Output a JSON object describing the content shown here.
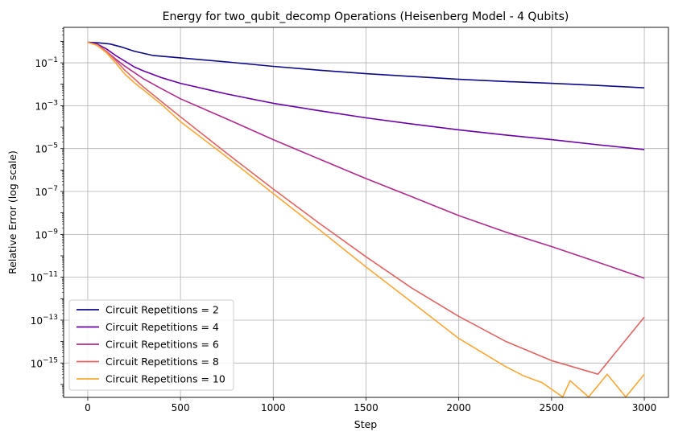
{
  "chart_data": {
    "type": "line",
    "title": "Energy for two_qubit_decomp Operations (Heisenberg Model - 4 Qubits)",
    "xlabel": "Step",
    "ylabel": "Relative Error (log scale)",
    "yscale": "log",
    "xlim": [
      -130,
      3130
    ],
    "ylim": [
      2.5e-17,
      4.5
    ],
    "grid": true,
    "legend_position": "lower-left",
    "xticks": [
      {
        "value": 0,
        "label": "0"
      },
      {
        "value": 500,
        "label": "500"
      },
      {
        "value": 1000,
        "label": "1000"
      },
      {
        "value": 1500,
        "label": "1500"
      },
      {
        "value": 2000,
        "label": "2000"
      },
      {
        "value": 2500,
        "label": "2500"
      },
      {
        "value": 3000,
        "label": "3000"
      }
    ],
    "yticks": [
      {
        "value": 0.1,
        "base": "10",
        "exp": "−1"
      },
      {
        "value": 0.001,
        "base": "10",
        "exp": "−3"
      },
      {
        "value": 1e-05,
        "base": "10",
        "exp": "−5"
      },
      {
        "value": 1e-07,
        "base": "10",
        "exp": "−7"
      },
      {
        "value": 1e-09,
        "base": "10",
        "exp": "−9"
      },
      {
        "value": 1e-11,
        "base": "10",
        "exp": "−11"
      },
      {
        "value": 1e-13,
        "base": "10",
        "exp": "−13"
      },
      {
        "value": 1e-15,
        "base": "10",
        "exp": "−15"
      }
    ],
    "series": [
      {
        "name": "Circuit Repetitions = 2",
        "color": "#0d0887",
        "points": [
          [
            0,
            0.9
          ],
          [
            60,
            0.85
          ],
          [
            120,
            0.75
          ],
          [
            180,
            0.55
          ],
          [
            250,
            0.35
          ],
          [
            350,
            0.22
          ],
          [
            500,
            0.17
          ],
          [
            750,
            0.11
          ],
          [
            1000,
            0.068
          ],
          [
            1250,
            0.045
          ],
          [
            1500,
            0.031
          ],
          [
            1750,
            0.023
          ],
          [
            2000,
            0.017
          ],
          [
            2250,
            0.0135
          ],
          [
            2500,
            0.011
          ],
          [
            2750,
            0.0088
          ],
          [
            3000,
            0.0068
          ]
        ]
      },
      {
        "name": "Circuit Repetitions = 4",
        "color": "#6a00a8",
        "points": [
          [
            0,
            0.9
          ],
          [
            50,
            0.75
          ],
          [
            100,
            0.45
          ],
          [
            150,
            0.22
          ],
          [
            200,
            0.12
          ],
          [
            250,
            0.065
          ],
          [
            300,
            0.042
          ],
          [
            400,
            0.02
          ],
          [
            500,
            0.011
          ],
          [
            750,
            0.0035
          ],
          [
            1000,
            0.0013
          ],
          [
            1250,
            0.00058
          ],
          [
            1500,
            0.00027
          ],
          [
            1750,
            0.00014
          ],
          [
            2000,
            7.5e-05
          ],
          [
            2250,
            4.3e-05
          ],
          [
            2500,
            2.6e-05
          ],
          [
            2750,
            1.5e-05
          ],
          [
            3000,
            9e-06
          ]
        ]
      },
      {
        "name": "Circuit Repetitions = 6",
        "color": "#b12a90",
        "points": [
          [
            0,
            0.9
          ],
          [
            50,
            0.7
          ],
          [
            100,
            0.35
          ],
          [
            150,
            0.15
          ],
          [
            200,
            0.07
          ],
          [
            300,
            0.018
          ],
          [
            400,
            0.006
          ],
          [
            500,
            0.0021
          ],
          [
            750,
            0.00024
          ],
          [
            1000,
            2.6e-05
          ],
          [
            1250,
            3.2e-06
          ],
          [
            1500,
            4e-07
          ],
          [
            1750,
            5.5e-08
          ],
          [
            2000,
            7.5e-09
          ],
          [
            2250,
            1.3e-09
          ],
          [
            2500,
            2.7e-10
          ],
          [
            2750,
            5e-11
          ],
          [
            3000,
            9e-12
          ]
        ]
      },
      {
        "name": "Circuit Repetitions = 8",
        "color": "#e16462",
        "points": [
          [
            0,
            0.9
          ],
          [
            50,
            0.7
          ],
          [
            100,
            0.35
          ],
          [
            150,
            0.13
          ],
          [
            200,
            0.045
          ],
          [
            300,
            0.0075
          ],
          [
            400,
            0.0015
          ],
          [
            500,
            0.0003
          ],
          [
            750,
            6e-06
          ],
          [
            1000,
            1.3e-07
          ],
          [
            1250,
            3.2e-09
          ],
          [
            1500,
            9e-11
          ],
          [
            1750,
            3e-12
          ],
          [
            2000,
            1.5e-13
          ],
          [
            2250,
            1.05e-14
          ],
          [
            2500,
            1.3e-15
          ],
          [
            2750,
            3e-16
          ],
          [
            3000,
            1.4e-13
          ]
        ]
      },
      {
        "name": "Circuit Repetitions = 10",
        "color": "#fca636",
        "points": [
          [
            0,
            0.9
          ],
          [
            50,
            0.65
          ],
          [
            100,
            0.3
          ],
          [
            150,
            0.1
          ],
          [
            200,
            0.03
          ],
          [
            250,
            0.012
          ],
          [
            300,
            0.0055
          ],
          [
            400,
            0.0011
          ],
          [
            500,
            0.00018
          ],
          [
            750,
            4e-06
          ],
          [
            1000,
            8e-08
          ],
          [
            1250,
            1.6e-09
          ],
          [
            1500,
            3e-11
          ],
          [
            1750,
            6.5e-13
          ],
          [
            2000,
            1.4e-14
          ],
          [
            2250,
            7e-16
          ],
          [
            2350,
            2.5e-16
          ],
          [
            2450,
            1.2e-16
          ],
          [
            2560,
            2.6e-17
          ],
          [
            2600,
            1.5e-16
          ],
          [
            2700,
            2.6e-17
          ],
          [
            2800,
            3e-16
          ],
          [
            2900,
            2.6e-17
          ],
          [
            3000,
            3e-16
          ]
        ]
      }
    ]
  }
}
